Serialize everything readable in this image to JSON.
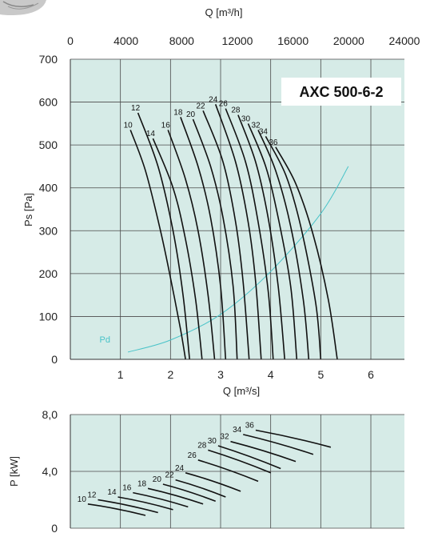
{
  "colors": {
    "plot_background": "#d6ebe7",
    "grid": "#4a4a4a",
    "curves": "#111111",
    "pd_curve": "#49c3c8",
    "title_box": "#ffffff"
  },
  "chart_data": [
    {
      "type": "line",
      "title": "AXC 500-6-2",
      "xlabel": "Q [m³/s]",
      "ylabel": "Ps [Pa]",
      "x2label": "Q [m³/h]",
      "xlim": [
        0,
        6.67
      ],
      "ylim": [
        0,
        700
      ],
      "x2lim": [
        0,
        24000
      ],
      "xticks": [
        1,
        2,
        3,
        4,
        5,
        6
      ],
      "yticks": [
        0,
        100,
        200,
        300,
        400,
        500,
        600,
        700
      ],
      "x2ticks": [
        0,
        4000,
        8000,
        12000,
        16000,
        20000,
        24000
      ],
      "grid": true,
      "pd_curve": {
        "name": "Pd",
        "x": [
          1.15,
          2.0,
          3.0,
          4.0,
          5.0,
          5.55
        ],
        "y": [
          17,
          45,
          105,
          205,
          340,
          450
        ]
      },
      "series": [
        {
          "name": "10",
          "x": [
            1.2,
            1.5,
            1.8,
            2.0,
            2.2,
            2.3
          ],
          "y": [
            535,
            440,
            300,
            190,
            70,
            0
          ]
        },
        {
          "name": "12",
          "x": [
            1.35,
            1.75,
            2.05,
            2.25,
            2.38
          ],
          "y": [
            575,
            450,
            300,
            150,
            0
          ]
        },
        {
          "name": "14",
          "x": [
            1.65,
            2.05,
            2.3,
            2.5,
            2.63
          ],
          "y": [
            515,
            400,
            280,
            140,
            0
          ]
        },
        {
          "name": "16",
          "x": [
            1.95,
            2.3,
            2.55,
            2.75,
            2.88
          ],
          "y": [
            535,
            420,
            300,
            150,
            0
          ]
        },
        {
          "name": "18",
          "x": [
            2.2,
            2.55,
            2.8,
            3.0,
            3.1
          ],
          "y": [
            565,
            450,
            330,
            170,
            0
          ]
        },
        {
          "name": "20",
          "x": [
            2.45,
            2.8,
            3.05,
            3.25,
            3.33
          ],
          "y": [
            560,
            450,
            330,
            170,
            0
          ]
        },
        {
          "name": "22",
          "x": [
            2.65,
            3.05,
            3.3,
            3.45,
            3.57
          ],
          "y": [
            580,
            460,
            320,
            180,
            0
          ]
        },
        {
          "name": "24",
          "x": [
            2.9,
            3.3,
            3.55,
            3.7,
            3.81
          ],
          "y": [
            595,
            460,
            320,
            180,
            0
          ]
        },
        {
          "name": "26",
          "x": [
            3.1,
            3.5,
            3.75,
            3.95,
            4.05
          ],
          "y": [
            585,
            460,
            320,
            160,
            0
          ]
        },
        {
          "name": "28",
          "x": [
            3.35,
            3.7,
            3.95,
            4.15,
            4.28
          ],
          "y": [
            570,
            460,
            330,
            170,
            0
          ]
        },
        {
          "name": "30",
          "x": [
            3.55,
            3.9,
            4.15,
            4.4,
            4.52
          ],
          "y": [
            550,
            450,
            330,
            170,
            0
          ]
        },
        {
          "name": "32",
          "x": [
            3.75,
            4.1,
            4.4,
            4.65,
            4.76
          ],
          "y": [
            535,
            440,
            310,
            140,
            0
          ]
        },
        {
          "name": "34",
          "x": [
            3.9,
            4.3,
            4.6,
            4.9,
            5.0
          ],
          "y": [
            520,
            430,
            310,
            130,
            0
          ]
        },
        {
          "name": "36",
          "x": [
            4.1,
            4.5,
            4.85,
            5.15,
            5.33
          ],
          "y": [
            495,
            410,
            290,
            140,
            0
          ]
        }
      ]
    },
    {
      "type": "line",
      "title": "",
      "xlabel": "",
      "ylabel": "P [kW]",
      "ylim": [
        0,
        8
      ],
      "yticks": [
        0,
        4,
        8
      ],
      "ytick_labels": [
        "0",
        "4,0",
        "8,0"
      ],
      "grid": true,
      "series": [
        {
          "name": "10",
          "x": [
            0.35,
            1.5
          ],
          "y": [
            1.7,
            0.9
          ]
        },
        {
          "name": "12",
          "x": [
            0.55,
            1.75
          ],
          "y": [
            2.0,
            1.1
          ]
        },
        {
          "name": "14",
          "x": [
            0.95,
            2.05
          ],
          "y": [
            2.2,
            1.3
          ]
        },
        {
          "name": "16",
          "x": [
            1.25,
            2.35
          ],
          "y": [
            2.5,
            1.5
          ]
        },
        {
          "name": "18",
          "x": [
            1.55,
            2.65
          ],
          "y": [
            2.8,
            1.7
          ]
        },
        {
          "name": "20",
          "x": [
            1.85,
            2.9
          ],
          "y": [
            3.1,
            1.9
          ]
        },
        {
          "name": "22",
          "x": [
            2.1,
            3.1
          ],
          "y": [
            3.4,
            2.2
          ]
        },
        {
          "name": "24",
          "x": [
            2.3,
            3.4
          ],
          "y": [
            3.9,
            2.6
          ]
        },
        {
          "name": "26",
          "x": [
            2.55,
            3.75
          ],
          "y": [
            4.8,
            3.3
          ]
        },
        {
          "name": "28",
          "x": [
            2.75,
            4.0
          ],
          "y": [
            5.5,
            3.9
          ]
        },
        {
          "name": "30",
          "x": [
            2.95,
            4.2
          ],
          "y": [
            5.8,
            4.2
          ]
        },
        {
          "name": "32",
          "x": [
            3.2,
            4.5
          ],
          "y": [
            6.1,
            4.7
          ]
        },
        {
          "name": "34",
          "x": [
            3.45,
            4.85
          ],
          "y": [
            6.6,
            5.2
          ]
        },
        {
          "name": "36",
          "x": [
            3.7,
            5.2
          ],
          "y": [
            6.9,
            5.7
          ]
        }
      ]
    }
  ]
}
